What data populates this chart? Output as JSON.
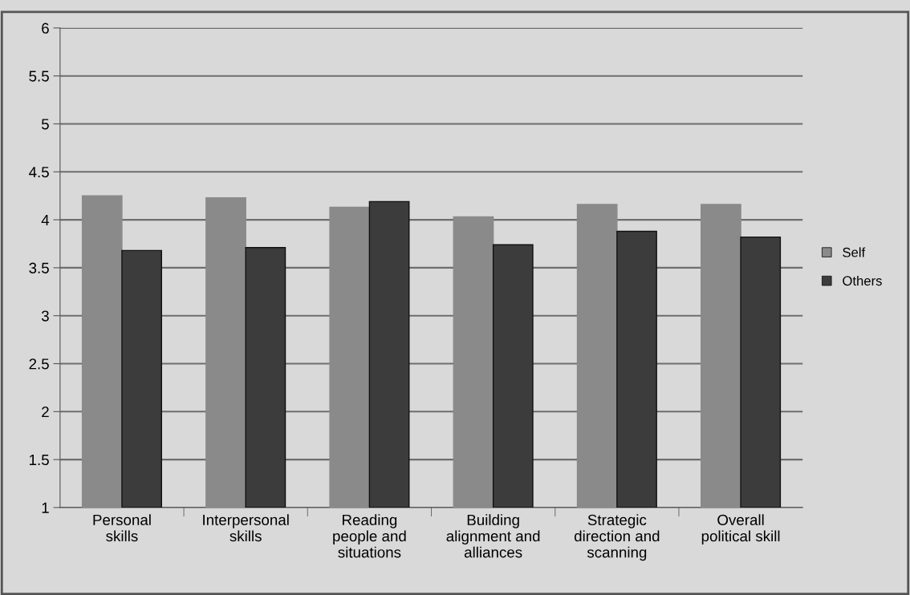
{
  "chart_data": {
    "type": "bar",
    "categories": [
      "Personal\nskills",
      "Interpersonal\nskills",
      "Reading\npeople and\nsituations",
      "Building\nalignment and\nalliances",
      "Strategic\ndirection and\nscanning",
      "Overall\npolitical skill"
    ],
    "series": [
      {
        "name": "Self",
        "color": "#8a8a8a",
        "values": [
          4.25,
          4.23,
          4.13,
          4.03,
          4.16,
          4.16
        ]
      },
      {
        "name": "Others",
        "color": "#3c3c3c",
        "values": [
          3.68,
          3.71,
          4.19,
          3.74,
          3.88,
          3.82
        ]
      }
    ],
    "ylim": [
      1,
      6
    ],
    "yticks": [
      1,
      1.5,
      2,
      2.5,
      3,
      3.5,
      4,
      4.5,
      5,
      5.5,
      6
    ],
    "grid": "y",
    "legend": "right"
  }
}
